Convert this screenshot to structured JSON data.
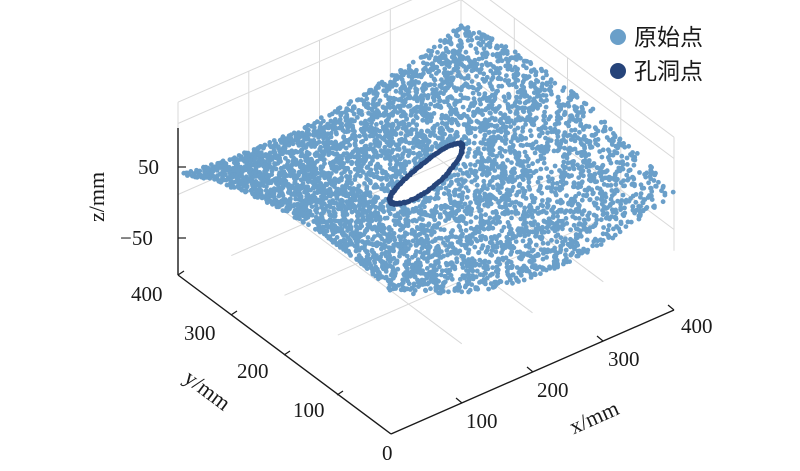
{
  "chart_data": {
    "type": "scatter",
    "title": "",
    "x_label": "x/mm",
    "y_label": "y/mm",
    "z_label": "z/mm",
    "xlim": [
      0,
      400
    ],
    "ylim": [
      0,
      400
    ],
    "zlim": [
      -80,
      80
    ],
    "x_ticks": [
      "100",
      "200",
      "300",
      "400"
    ],
    "y_ticks": [
      "0",
      "100",
      "200",
      "300",
      "400"
    ],
    "z_ticks": [
      "50",
      "−50"
    ],
    "grid": true,
    "legend_position": "top-right",
    "series": [
      {
        "name": "原始点",
        "color": "#6a9fc9",
        "description_surface": "saddle-shaped point cloud over x 0–400, y 0–400",
        "hole_excluded": true
      },
      {
        "name": "孔洞点",
        "color": "#26447a",
        "hole_center": [
          200,
          200
        ],
        "hole_semi_axes": [
          70,
          18
        ]
      }
    ]
  }
}
